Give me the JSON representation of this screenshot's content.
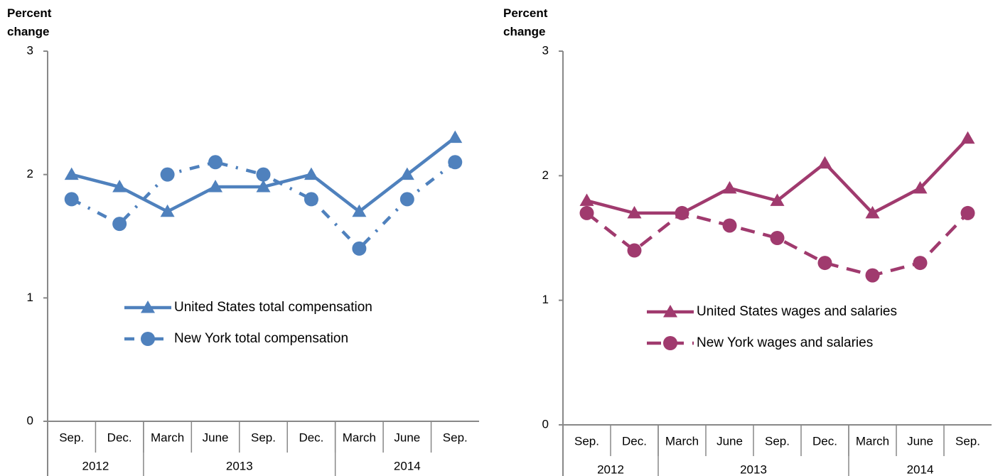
{
  "chart_data": [
    {
      "type": "line",
      "ylabel": "Percent change",
      "categories": [
        "Sep.",
        "Dec.",
        "March",
        "June",
        "Sep.",
        "Dec.",
        "March",
        "June",
        "Sep."
      ],
      "year_groups": [
        {
          "label": "2012",
          "span": 2
        },
        {
          "label": "2013",
          "span": 4
        },
        {
          "label": "2014",
          "span": 3
        }
      ],
      "ylim": [
        0,
        3
      ],
      "yticks": [
        0,
        1,
        2,
        3
      ],
      "legend": "center",
      "series": [
        {
          "name": "United States total compensation",
          "color": "#4f81bd",
          "marker": "triangle",
          "dash": "solid",
          "values": [
            2.0,
            1.9,
            1.7,
            1.9,
            1.9,
            2.0,
            1.7,
            2.0,
            2.3
          ]
        },
        {
          "name": "New York total compensation",
          "color": "#4f81bd",
          "marker": "circle",
          "dash": "dashdot",
          "values": [
            1.8,
            1.6,
            2.0,
            2.1,
            2.0,
            1.8,
            1.4,
            1.8,
            2.1
          ]
        }
      ]
    },
    {
      "type": "line",
      "ylabel": "Percent change",
      "categories": [
        "Sep.",
        "Dec.",
        "March",
        "June",
        "Sep.",
        "Dec.",
        "March",
        "June",
        "Sep."
      ],
      "year_groups": [
        {
          "label": "2012",
          "span": 2
        },
        {
          "label": "2013",
          "span": 4
        },
        {
          "label": "2014",
          "span": 3
        }
      ],
      "ylim": [
        0,
        3
      ],
      "yticks": [
        0,
        1,
        2,
        3
      ],
      "legend": "center",
      "series": [
        {
          "name": "United States wages and salaries",
          "color": "#a03a6e",
          "marker": "triangle",
          "dash": "solid",
          "values": [
            1.8,
            1.7,
            1.7,
            1.9,
            1.8,
            2.1,
            1.7,
            1.9,
            2.3
          ]
        },
        {
          "name": "New York wages and salaries",
          "color": "#a03a6e",
          "marker": "circle",
          "dash": "dashed",
          "values": [
            1.7,
            1.4,
            1.7,
            1.6,
            1.5,
            1.3,
            1.2,
            1.3,
            1.7
          ]
        }
      ]
    }
  ]
}
